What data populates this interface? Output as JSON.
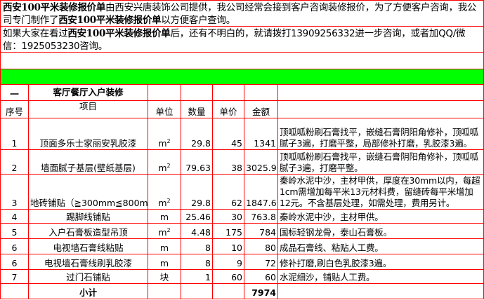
{
  "intro": {
    "p1_bold1": "西安100平米装修报价单",
    "p1_text1": "由西安兴唐装饰公司提供，我公司经常会接到客户咨询装修报价，为了方便客户咨询，我公司专门制作了",
    "p1_bold2": "西安100平米装修报价单",
    "p1_text2": "以方便客户查询。",
    "p2_text1": "如果大家在看过",
    "p2_bold": "西安100平米装修报价单",
    "p2_text2": "后，还有不明白的，就请拨打13909256332进一步咨询，或者加QQ/微信：1925053230咨询。"
  },
  "section": {
    "number": "一",
    "title": "客厅餐厅入户装修"
  },
  "headers": [
    "序号",
    "项目",
    "单位",
    "数量",
    "单价",
    "金额",
    ""
  ],
  "rows": [
    {
      "no": "1",
      "item": "顶面多乐士家丽安乳胶漆",
      "unit": "m",
      "sup": "2",
      "qty": "29.8",
      "price": "45",
      "amount": "1341",
      "desc": "顶呱呱粉刷石膏找平，嵌缝石膏阴阳角修补，顶呱呱腻子3遍，打磨平整，局部修补打磨，乳胶漆3遍。"
    },
    {
      "no": "2",
      "item": "墙面腻子基层(壁纸基层)",
      "unit": "m",
      "sup": "2",
      "qty": "79.63",
      "price": "38",
      "amount": "3025.9",
      "desc": "顶呱呱粉刷石膏找平，嵌缝石膏阴阳角修补，顶呱呱腻子3遍，打磨平整。"
    },
    {
      "no": "3",
      "item": "地砖铺贴（≧300mm≦800mm)",
      "unit": "m",
      "sup": "2",
      "qty": "29.8",
      "price": "62",
      "amount": "1847.6",
      "desc": "秦岭水泥中沙，主材甲供，厚度在30mm以内，每超1cm需增加每平米13元材料费，留缝砖每平米增加12元。不含基层处理，如需处理，费用另计。"
    },
    {
      "no": "4",
      "item": "踢脚线铺贴",
      "unit": "m",
      "sup": "",
      "qty": "25.46",
      "price": "30",
      "amount": "763.8",
      "desc": "秦岭水泥中沙，主材甲供。"
    },
    {
      "no": "5",
      "item": "入户石膏板造型吊顶",
      "unit": "m",
      "sup": "2",
      "qty": "4.48",
      "price": "175",
      "amount": "784",
      "desc": "国标轻钢龙骨，泰山石膏板。"
    },
    {
      "no": "6",
      "item": "电视墙石膏线粘贴",
      "unit": "m",
      "sup": "",
      "qty": "8",
      "price": "10",
      "amount": "80",
      "desc": "成品石膏线、粘贴人工费。"
    },
    {
      "no": "6",
      "item": "电视墙石膏线刷乳胶漆",
      "unit": "m",
      "sup": "",
      "qty": "8",
      "price": "9",
      "amount": "72",
      "desc": "修补打磨,刷白色乳胶漆3遍。"
    },
    {
      "no": "7",
      "item": "过门石铺贴",
      "unit": "块",
      "sup": "",
      "qty": "1",
      "price": "60",
      "amount": "60",
      "desc": "水泥细沙，铺贴人工费。"
    }
  ],
  "subtotal": {
    "label": "小计",
    "amount": "7974"
  },
  "colors": {
    "border": "#ff0000",
    "banner": "#00ff00"
  }
}
